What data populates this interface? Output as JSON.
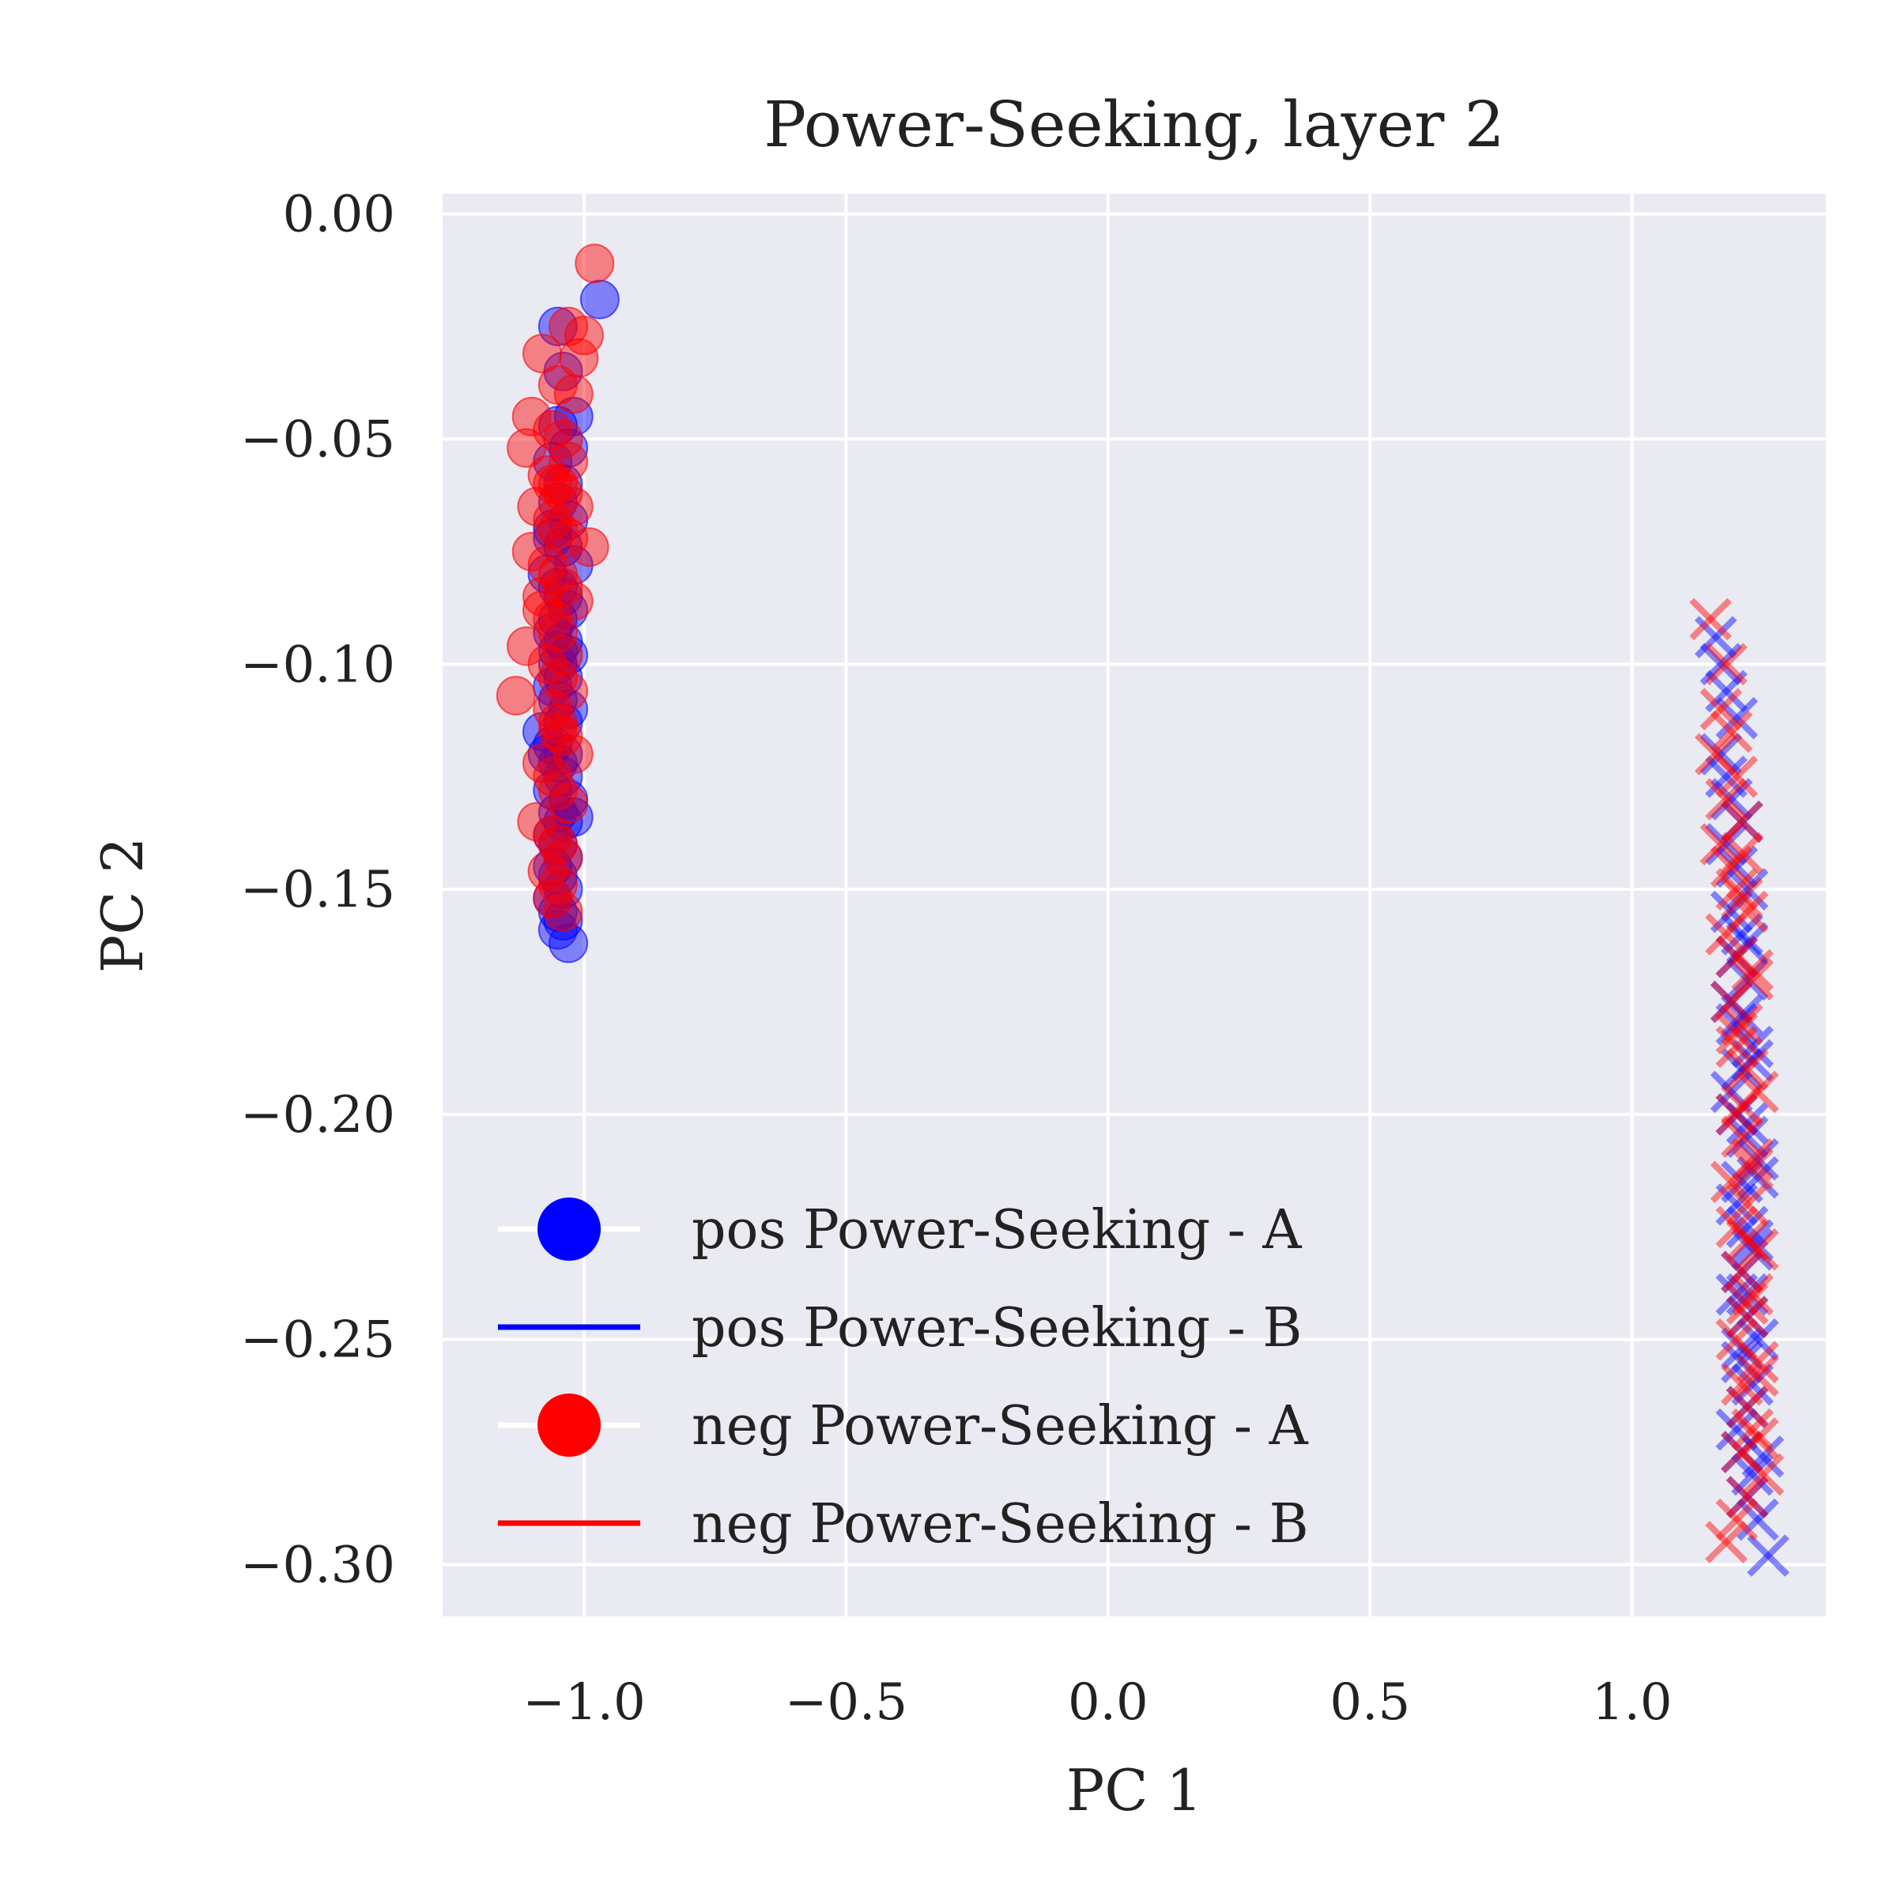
{
  "chart_data": {
    "type": "scatter",
    "title": "Power-Seeking, layer 2",
    "xlabel": "PC 1",
    "ylabel": "PC 2",
    "xlim": [
      -1.27,
      1.37
    ],
    "ylim": [
      -0.3115,
      0.0045
    ],
    "xticks": [
      -1.0,
      -0.5,
      0.0,
      0.5,
      1.0
    ],
    "xtick_labels": [
      "−1.0",
      "−0.5",
      "0.0",
      "0.5",
      "1.0"
    ],
    "yticks": [
      0.0,
      -0.05,
      -0.1,
      -0.15,
      -0.2,
      -0.25,
      -0.3
    ],
    "ytick_labels": [
      "0.00",
      "−0.05",
      "−0.10",
      "−0.15",
      "−0.20",
      "−0.25",
      "−0.30"
    ],
    "grid": true,
    "legend_position": "lower-left",
    "background": "#eaeaf2",
    "series": [
      {
        "name": "pos Power-Seeking - A",
        "marker": "circle",
        "color": "#0000ff",
        "x": [
          -0.97,
          -1.05,
          -1.04,
          -1.02,
          -1.05,
          -1.03,
          -1.06,
          -1.04,
          -1.05,
          -1.03,
          -1.06,
          -1.04,
          -1.02,
          -1.07,
          -1.05,
          -1.04,
          -1.03,
          -1.05,
          -1.06,
          -1.04,
          -1.03,
          -1.05,
          -1.04,
          -1.06,
          -1.05,
          -1.03,
          -1.04,
          -1.08,
          -1.06,
          -1.07,
          -1.05,
          -1.04,
          -1.06,
          -1.03,
          -1.05,
          -1.04,
          -1.06,
          -1.05,
          -1.04,
          -1.06,
          -1.02,
          -1.05,
          -1.04,
          -1.06,
          -1.05,
          -1.04,
          -1.05,
          -1.03,
          -1.06,
          -1.05,
          -1.04
        ],
        "y": [
          -0.019,
          -0.025,
          -0.035,
          -0.045,
          -0.047,
          -0.052,
          -0.055,
          -0.06,
          -0.064,
          -0.068,
          -0.07,
          -0.074,
          -0.078,
          -0.08,
          -0.083,
          -0.085,
          -0.088,
          -0.09,
          -0.093,
          -0.095,
          -0.098,
          -0.1,
          -0.103,
          -0.105,
          -0.108,
          -0.11,
          -0.113,
          -0.115,
          -0.118,
          -0.12,
          -0.122,
          -0.125,
          -0.128,
          -0.13,
          -0.133,
          -0.135,
          -0.138,
          -0.14,
          -0.143,
          -0.145,
          -0.134,
          -0.147,
          -0.15,
          -0.152,
          -0.155,
          -0.157,
          -0.159,
          -0.162,
          -0.072,
          -0.097,
          -0.12
        ]
      },
      {
        "name": "pos Power-Seeking - B",
        "marker": "x",
        "color": "#0000ff",
        "x": [
          1.16,
          1.17,
          1.18,
          1.2,
          1.17,
          1.18,
          1.19,
          1.21,
          1.18,
          1.2,
          1.22,
          1.19,
          1.21,
          1.2,
          1.22,
          1.19,
          1.2,
          1.23,
          1.21,
          1.19,
          1.2,
          1.22,
          1.24,
          1.21,
          1.2,
          1.22,
          1.23,
          1.21,
          1.2,
          1.22,
          1.24,
          1.21,
          1.23,
          1.22,
          1.2,
          1.21,
          1.23,
          1.22,
          1.24,
          1.21,
          1.22,
          1.23,
          1.21,
          1.25,
          1.22,
          1.23,
          1.24,
          1.26,
          1.22
        ],
        "y": [
          -0.094,
          -0.1,
          -0.106,
          -0.112,
          -0.12,
          -0.125,
          -0.13,
          -0.135,
          -0.14,
          -0.145,
          -0.15,
          -0.155,
          -0.16,
          -0.165,
          -0.17,
          -0.175,
          -0.18,
          -0.185,
          -0.19,
          -0.195,
          -0.2,
          -0.205,
          -0.21,
          -0.215,
          -0.22,
          -0.225,
          -0.23,
          -0.235,
          -0.24,
          -0.245,
          -0.25,
          -0.255,
          -0.26,
          -0.265,
          -0.27,
          -0.275,
          -0.28,
          -0.285,
          -0.29,
          -0.178,
          -0.202,
          -0.228,
          -0.252,
          -0.276,
          -0.162,
          -0.188,
          -0.214,
          -0.298,
          -0.24
        ]
      },
      {
        "name": "neg Power-Seeking - A",
        "marker": "circle",
        "color": "#ff0000",
        "x": [
          -0.98,
          -1.0,
          -1.03,
          -1.01,
          -1.08,
          -1.05,
          -1.02,
          -1.1,
          -1.06,
          -1.04,
          -1.03,
          -1.11,
          -1.07,
          -1.05,
          -1.04,
          -1.02,
          -1.09,
          -1.06,
          -1.05,
          -1.03,
          -0.99,
          -1.1,
          -1.07,
          -1.05,
          -1.04,
          -1.02,
          -1.08,
          -1.06,
          -1.05,
          -1.11,
          -1.04,
          -1.07,
          -1.05,
          -1.03,
          -1.13,
          -1.06,
          -1.05,
          -1.04,
          -1.02,
          -1.08,
          -1.06,
          -1.05,
          -1.03,
          -1.09,
          -1.06,
          -1.05,
          -1.04,
          -1.07,
          -1.05,
          -1.06,
          -1.04,
          -1.08,
          -1.05,
          -1.06
        ],
        "y": [
          -0.011,
          -0.027,
          -0.025,
          -0.032,
          -0.031,
          -0.038,
          -0.04,
          -0.045,
          -0.048,
          -0.05,
          -0.055,
          -0.052,
          -0.058,
          -0.06,
          -0.062,
          -0.065,
          -0.065,
          -0.068,
          -0.07,
          -0.072,
          -0.074,
          -0.075,
          -0.078,
          -0.08,
          -0.083,
          -0.086,
          -0.088,
          -0.09,
          -0.093,
          -0.096,
          -0.098,
          -0.1,
          -0.103,
          -0.106,
          -0.107,
          -0.11,
          -0.113,
          -0.116,
          -0.12,
          -0.122,
          -0.125,
          -0.128,
          -0.131,
          -0.135,
          -0.138,
          -0.14,
          -0.143,
          -0.146,
          -0.149,
          -0.152,
          -0.155,
          -0.085,
          -0.115,
          -0.06
        ]
      },
      {
        "name": "neg Power-Seeking - B",
        "marker": "x",
        "color": "#ff0000",
        "x": [
          1.15,
          1.18,
          1.17,
          1.19,
          1.16,
          1.2,
          1.18,
          1.21,
          1.17,
          1.19,
          1.2,
          1.22,
          1.18,
          1.2,
          1.23,
          1.19,
          1.21,
          1.2,
          1.22,
          1.24,
          1.2,
          1.21,
          1.23,
          1.19,
          1.22,
          1.2,
          1.24,
          1.21,
          1.23,
          1.22,
          1.2,
          1.24,
          1.21,
          1.22,
          1.23,
          1.21,
          1.25,
          1.22,
          1.2,
          1.23,
          1.21,
          1.22,
          1.24,
          1.21,
          1.23,
          1.2,
          1.22,
          1.24,
          1.21,
          1.18
        ],
        "y": [
          -0.09,
          -0.1,
          -0.11,
          -0.115,
          -0.12,
          -0.125,
          -0.13,
          -0.135,
          -0.14,
          -0.145,
          -0.15,
          -0.155,
          -0.16,
          -0.165,
          -0.17,
          -0.175,
          -0.18,
          -0.185,
          -0.19,
          -0.195,
          -0.2,
          -0.205,
          -0.21,
          -0.215,
          -0.22,
          -0.225,
          -0.23,
          -0.235,
          -0.24,
          -0.245,
          -0.25,
          -0.255,
          -0.26,
          -0.265,
          -0.27,
          -0.275,
          -0.28,
          -0.285,
          -0.29,
          -0.168,
          -0.198,
          -0.228,
          -0.258,
          -0.142,
          -0.212,
          -0.182,
          -0.242,
          -0.272,
          -0.152,
          -0.295
        ]
      }
    ]
  }
}
